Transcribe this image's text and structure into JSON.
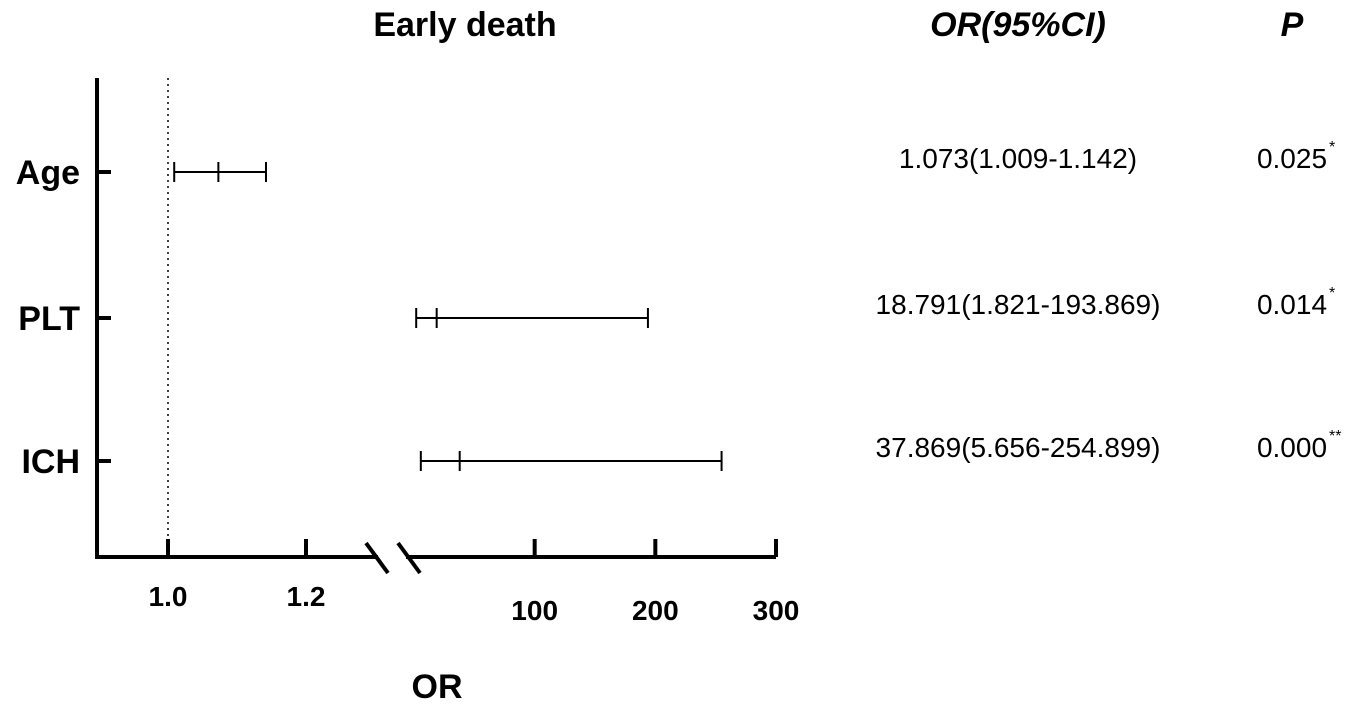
{
  "chart_data": {
    "type": "forest",
    "title": "Early death",
    "xlabel": "OR",
    "columns": {
      "or_ci": "OR(95%CI)",
      "p": "P"
    },
    "reference_line": 1.0,
    "axis_break": true,
    "segments": [
      {
        "range": [
          0.9,
          1.3
        ],
        "ticks": [
          1.0,
          1.2
        ],
        "tick_labels": [
          "1.0",
          "1.2"
        ]
      },
      {
        "range": [
          0,
          300
        ],
        "ticks": [
          100,
          200,
          300
        ],
        "tick_labels": [
          "100",
          "200",
          "300"
        ]
      }
    ],
    "rows": [
      {
        "label": "Age",
        "or": 1.073,
        "lower": 1.009,
        "upper": 1.142,
        "or_ci_text": "1.073(1.009-1.142)",
        "p_text": "0.025",
        "sig": "*"
      },
      {
        "label": "PLT",
        "or": 18.791,
        "lower": 1.821,
        "upper": 193.869,
        "or_ci_text": "18.791(1.821-193.869)",
        "p_text": "0.014",
        "sig": "*"
      },
      {
        "label": "ICH",
        "or": 37.869,
        "lower": 5.656,
        "upper": 254.899,
        "or_ci_text": "37.869(5.656-254.899)",
        "p_text": "0.000",
        "sig": "**"
      }
    ]
  }
}
